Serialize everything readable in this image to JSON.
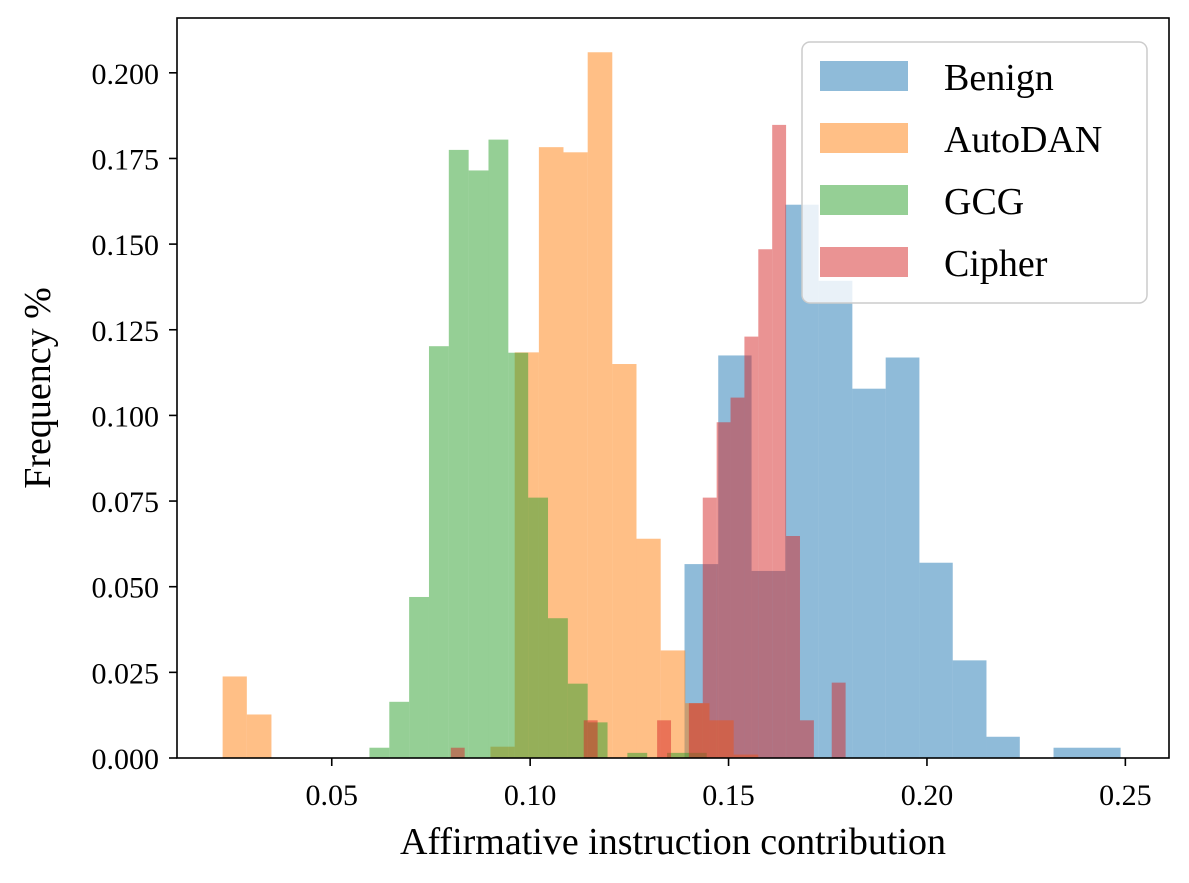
{
  "chart_data": {
    "type": "histogram",
    "xlabel": "Affirmative instruction contribution",
    "ylabel": "Frequency %",
    "xlim": [
      0.011,
      0.261
    ],
    "ylim": [
      0,
      0.216
    ],
    "xticks": [
      0.05,
      0.1,
      0.15,
      0.2,
      0.25
    ],
    "xtick_labels": [
      "0.05",
      "0.10",
      "0.15",
      "0.20",
      "0.25"
    ],
    "yticks": [
      0,
      0.025,
      0.05,
      0.075,
      0.1,
      0.125,
      0.15,
      0.175,
      0.2
    ],
    "ytick_labels": [
      "0.000",
      "0.025",
      "0.050",
      "0.075",
      "0.100",
      "0.125",
      "0.150",
      "0.175",
      "0.200"
    ],
    "legend_position": "top-right",
    "series": [
      {
        "name": "Benign",
        "color": "#1f77b4",
        "alpha": 0.5,
        "bins": [
          [
            0.1389,
            0.1474,
            0.0566
          ],
          [
            0.1474,
            0.1558,
            0.1175
          ],
          [
            0.1558,
            0.1643,
            0.0546
          ],
          [
            0.1643,
            0.1727,
            0.1615
          ],
          [
            0.1727,
            0.1812,
            0.1393
          ],
          [
            0.1812,
            0.1896,
            0.1078
          ],
          [
            0.1896,
            0.1981,
            0.1169
          ],
          [
            0.1981,
            0.2065,
            0.057
          ],
          [
            0.2065,
            0.215,
            0.0285
          ],
          [
            0.215,
            0.2234,
            0.0062
          ],
          [
            0.2319,
            0.2488,
            0.003
          ]
        ]
      },
      {
        "name": "AutoDAN",
        "color": "#ff7f0e",
        "alpha": 0.5,
        "bins": [
          [
            0.0225,
            0.0286,
            0.0238
          ],
          [
            0.0286,
            0.0348,
            0.0127
          ],
          [
            0.09,
            0.0961,
            0.0033
          ],
          [
            0.0961,
            0.1022,
            0.1184
          ],
          [
            0.1022,
            0.1084,
            0.1783
          ],
          [
            0.1084,
            0.1145,
            0.1768
          ],
          [
            0.1145,
            0.1207,
            0.206
          ],
          [
            0.1207,
            0.1268,
            0.115
          ],
          [
            0.1268,
            0.1329,
            0.064
          ],
          [
            0.1329,
            0.1391,
            0.0314
          ],
          [
            0.1391,
            0.1452,
            0.016
          ],
          [
            0.1452,
            0.1513,
            0.011
          ],
          [
            0.1513,
            0.1575,
            0.001
          ]
        ]
      },
      {
        "name": "GCG",
        "color": "#2ca02c",
        "alpha": 0.5,
        "bins": [
          [
            0.0595,
            0.0645,
            0.003
          ],
          [
            0.0645,
            0.0695,
            0.0164
          ],
          [
            0.0695,
            0.0745,
            0.047
          ],
          [
            0.0745,
            0.0795,
            0.1202
          ],
          [
            0.0795,
            0.0845,
            0.1775
          ],
          [
            0.0845,
            0.0895,
            0.1715
          ],
          [
            0.0895,
            0.0945,
            0.1805
          ],
          [
            0.0945,
            0.0995,
            0.1183
          ],
          [
            0.0995,
            0.1045,
            0.076
          ],
          [
            0.1045,
            0.1095,
            0.0408
          ],
          [
            0.1095,
            0.1145,
            0.0217
          ],
          [
            0.1145,
            0.1195,
            0.0104
          ],
          [
            0.1245,
            0.1295,
            0.0015
          ],
          [
            0.1345,
            0.1395,
            0.0015
          ],
          [
            0.1395,
            0.1445,
            0.0015
          ]
        ]
      },
      {
        "name": "Cipher",
        "color": "#d62728",
        "alpha": 0.5,
        "bins": [
          [
            0.08,
            0.0835,
            0.003
          ],
          [
            0.1135,
            0.117,
            0.011
          ],
          [
            0.132,
            0.1355,
            0.011
          ],
          [
            0.14,
            0.1435,
            0.016
          ],
          [
            0.1435,
            0.147,
            0.076
          ],
          [
            0.147,
            0.1505,
            0.098
          ],
          [
            0.1505,
            0.154,
            0.1052
          ],
          [
            0.154,
            0.1575,
            0.123
          ],
          [
            0.1575,
            0.161,
            0.1485
          ],
          [
            0.161,
            0.1645,
            0.1848
          ],
          [
            0.1645,
            0.168,
            0.0648
          ],
          [
            0.168,
            0.1715,
            0.011
          ],
          [
            0.176,
            0.1795,
            0.022
          ]
        ]
      }
    ]
  }
}
